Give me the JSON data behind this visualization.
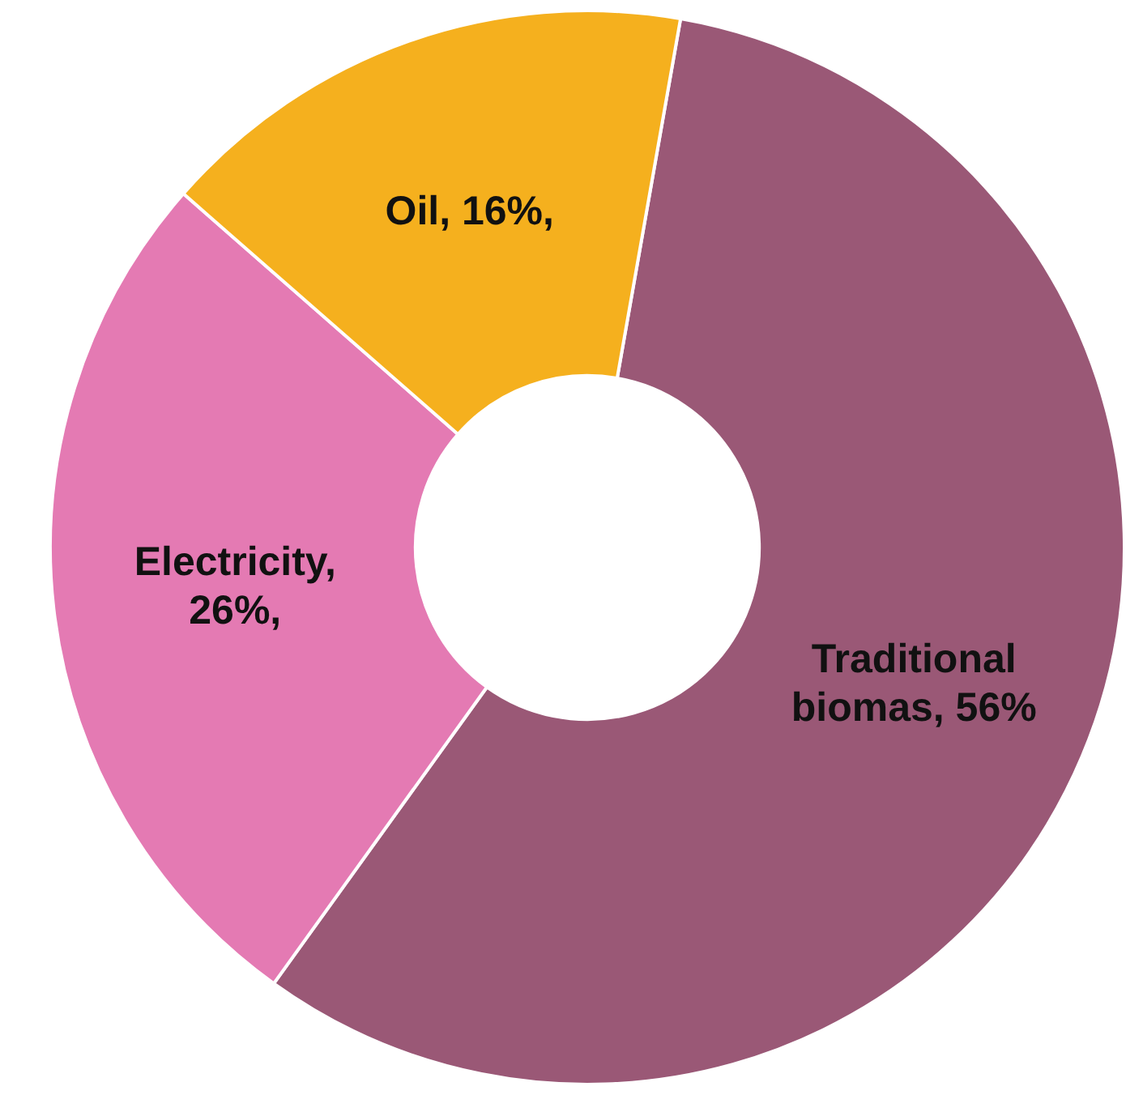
{
  "chart_data": {
    "type": "donut",
    "categories": [
      "Traditional biomas",
      "Electricity",
      "Oil"
    ],
    "values": [
      56,
      26,
      16
    ],
    "colors": [
      "#9a5876",
      "#e47ab3",
      "#f5b01e"
    ],
    "value_labels": [
      ", 56%",
      ", 26%,",
      ", 16%,"
    ],
    "legend": false
  }
}
